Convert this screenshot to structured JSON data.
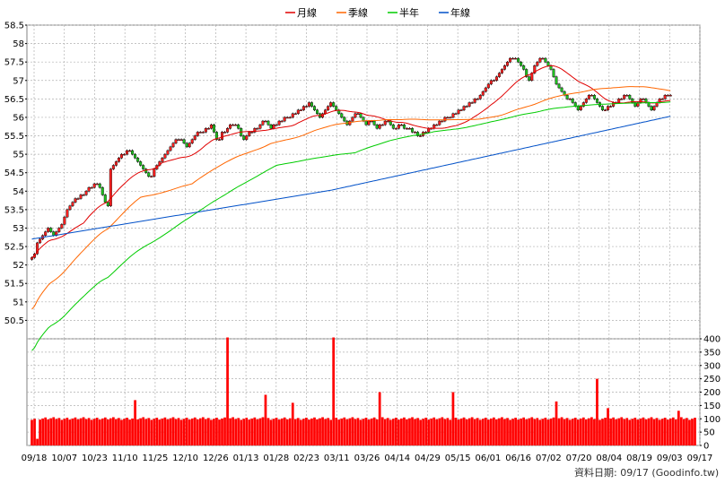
{
  "chart_data": {
    "type": "line",
    "legend": [
      {
        "name": "月線",
        "color": "#e00000"
      },
      {
        "name": "季線",
        "color": "#ff6600"
      },
      {
        "name": "半年",
        "color": "#00cc00"
      },
      {
        "name": "年線",
        "color": "#0050c8"
      }
    ],
    "legend_position": "top-center",
    "grid": true,
    "price_axis": {
      "min": 50,
      "max": 58.5,
      "ticks": [
        50.5,
        51,
        51.5,
        52,
        52.5,
        53,
        53.5,
        54,
        54.5,
        55,
        55.5,
        56,
        56.5,
        57,
        57.5,
        58,
        58.5
      ]
    },
    "volume_axis": {
      "min": 0,
      "max": 400,
      "ticks": [
        0,
        50,
        100,
        150,
        200,
        250,
        300,
        350,
        400
      ]
    },
    "x_tick_labels": [
      "09/18",
      "10/07",
      "10/23",
      "11/10",
      "11/25",
      "12/10",
      "12/26",
      "01/13",
      "01/28",
      "02/23",
      "03/11",
      "03/26",
      "04/14",
      "04/29",
      "05/15",
      "06/01",
      "06/16",
      "07/02",
      "07/20",
      "08/04",
      "08/19",
      "09/03",
      "09/17"
    ],
    "num_days": 245,
    "close": [
      52.2,
      52.3,
      52.6,
      52.7,
      52.8,
      52.9,
      53.0,
      52.9,
      52.8,
      52.9,
      53.0,
      53.1,
      53.3,
      53.5,
      53.6,
      53.7,
      53.8,
      53.8,
      53.9,
      53.9,
      54.0,
      54.1,
      54.1,
      54.2,
      54.2,
      54.1,
      53.9,
      53.7,
      53.6,
      54.6,
      54.7,
      54.8,
      54.9,
      55.0,
      55.0,
      55.1,
      55.1,
      55.0,
      54.9,
      54.8,
      54.7,
      54.6,
      54.5,
      54.4,
      54.4,
      54.6,
      54.7,
      54.8,
      54.9,
      55.0,
      55.1,
      55.2,
      55.3,
      55.4,
      55.4,
      55.4,
      55.3,
      55.2,
      55.3,
      55.4,
      55.5,
      55.6,
      55.6,
      55.6,
      55.7,
      55.7,
      55.8,
      55.6,
      55.4,
      55.4,
      55.6,
      55.6,
      55.7,
      55.8,
      55.8,
      55.8,
      55.7,
      55.5,
      55.4,
      55.5,
      55.6,
      55.6,
      55.7,
      55.7,
      55.8,
      55.9,
      55.9,
      55.8,
      55.7,
      55.8,
      55.8,
      55.9,
      55.9,
      56.0,
      56.0,
      56.0,
      56.1,
      56.1,
      56.2,
      56.2,
      56.3,
      56.3,
      56.4,
      56.3,
      56.2,
      56.1,
      56.0,
      56.1,
      56.2,
      56.3,
      56.4,
      56.3,
      56.2,
      56.1,
      56.0,
      55.9,
      55.8,
      55.9,
      56.0,
      56.1,
      56.1,
      56.0,
      55.9,
      55.8,
      55.9,
      55.9,
      55.8,
      55.7,
      55.8,
      55.8,
      55.9,
      55.9,
      55.8,
      55.7,
      55.7,
      55.8,
      55.8,
      55.7,
      55.7,
      55.7,
      55.6,
      55.6,
      55.5,
      55.5,
      55.6,
      55.6,
      55.7,
      55.7,
      55.8,
      55.8,
      55.9,
      55.9,
      56.0,
      56.0,
      56.0,
      56.1,
      56.1,
      56.2,
      56.2,
      56.3,
      56.3,
      56.4,
      56.4,
      56.5,
      56.5,
      56.6,
      56.7,
      56.8,
      56.9,
      57.0,
      57.0,
      57.1,
      57.2,
      57.3,
      57.4,
      57.5,
      57.6,
      57.6,
      57.6,
      57.5,
      57.4,
      57.3,
      57.1,
      57.0,
      57.2,
      57.4,
      57.5,
      57.6,
      57.6,
      57.5,
      57.4,
      57.3,
      57.1,
      56.9,
      56.8,
      56.7,
      56.6,
      56.5,
      56.5,
      56.4,
      56.3,
      56.2,
      56.3,
      56.4,
      56.5,
      56.6,
      56.6,
      56.5,
      56.4,
      56.3,
      56.2,
      56.2,
      56.3,
      56.3,
      56.4,
      56.4,
      56.5,
      56.5,
      56.6,
      56.6,
      56.5,
      56.4,
      56.3,
      56.4,
      56.5,
      56.5,
      56.4,
      56.3,
      56.2,
      56.3,
      56.4,
      56.5,
      56.5,
      56.6,
      56.6,
      56.6
    ],
    "spikes": [
      {
        "day": 2,
        "volume": 25
      },
      {
        "day": 38,
        "volume": 170
      },
      {
        "day": 72,
        "volume": 405
      },
      {
        "day": 86,
        "volume": 190
      },
      {
        "day": 96,
        "volume": 160
      },
      {
        "day": 111,
        "volume": 405
      },
      {
        "day": 128,
        "volume": 200
      },
      {
        "day": 155,
        "volume": 200
      },
      {
        "day": 193,
        "volume": 165
      },
      {
        "day": 208,
        "volume": 250
      },
      {
        "day": 212,
        "volume": 140
      },
      {
        "day": 238,
        "volume": 130
      }
    ],
    "baseline_volume": 100
  },
  "footer": {
    "prefix": "資料日期:",
    "date": "09/17",
    "source": "(Goodinfo.tw)"
  }
}
